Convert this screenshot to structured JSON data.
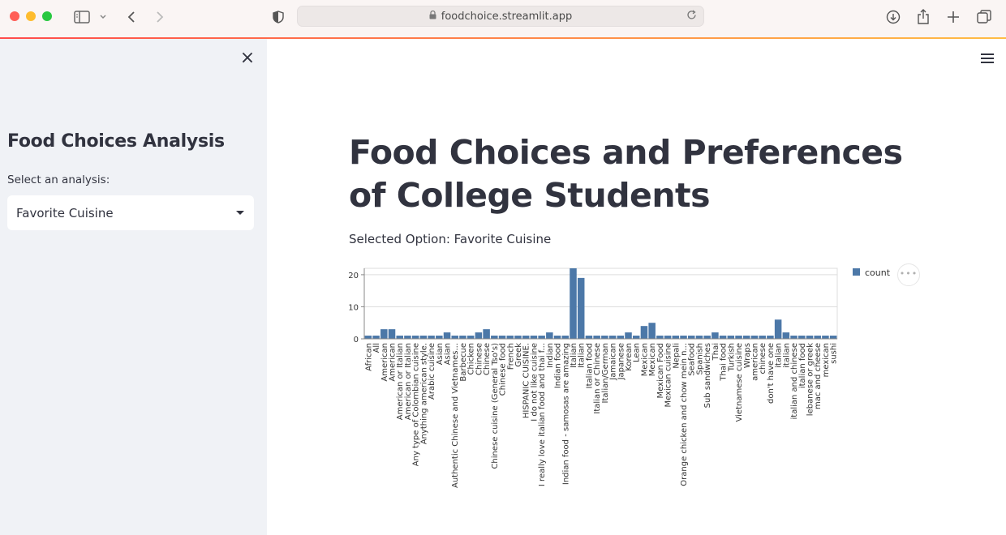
{
  "browser": {
    "url": "foodchoice.streamlit.app",
    "traffic_colors": [
      "#ff5f57",
      "#febc2e",
      "#28c840"
    ]
  },
  "sidebar": {
    "close_icon": "×",
    "title": "Food Choices Analysis",
    "select_label": "Select an analysis:",
    "selected_value": "Favorite Cuisine"
  },
  "main": {
    "title": "Food Choices and Preferences of College Students",
    "selected_text": "Selected Option: Favorite Cuisine"
  },
  "chart_data": {
    "type": "bar",
    "categories": [
      "African",
      "All",
      "American",
      "American",
      "American or Italian",
      "American or Italian",
      "Any type of Colombian cuisine",
      "Anything american style.",
      "Arabic cuisine",
      "Asian",
      "Asian",
      "Authentic Chinese and Vietnames...",
      "Barbecue",
      "Chicken",
      "Chinese",
      "Chinese",
      "Chinese cuisine (General Tso's)",
      "Chinese food",
      "French",
      "Greek",
      "HISPANIC CUISINE.",
      "I do not like cuisine",
      "I really love italian food and thai f...",
      "Indian",
      "Indian food",
      "Indian food - samosas are amazing",
      "Italian",
      "Italian",
      "Italian food",
      "Italian or Chinese",
      "Italian/German",
      "Jamaican",
      "Japanese",
      "Korean",
      "Lean",
      "Mexican",
      "Mexican",
      "Mexican Food",
      "Mexican cuisine",
      "Nepali",
      "Orange chicken and chow mein n...",
      "Seafood",
      "Spanish",
      "Sub sandwiches",
      "Thai",
      "Thai food",
      "Turkish",
      "Vietnamese cuisine",
      "Wraps",
      "american",
      "chinese",
      "don't have one",
      "italian",
      "italian",
      "italian and chinese",
      "italian food",
      "lebanese or greek",
      "mac and cheese",
      "mexican",
      "sushi"
    ],
    "series": [
      {
        "name": "count",
        "values": [
          1,
          1,
          3,
          3,
          1,
          1,
          1,
          1,
          1,
          1,
          2,
          1,
          1,
          1,
          2,
          3,
          1,
          1,
          1,
          1,
          1,
          1,
          1,
          2,
          1,
          1,
          22,
          19,
          1,
          1,
          1,
          1,
          1,
          2,
          1,
          4,
          5,
          1,
          1,
          1,
          1,
          1,
          1,
          1,
          2,
          1,
          1,
          1,
          1,
          1,
          1,
          1,
          6,
          2,
          1,
          1,
          1,
          1,
          1,
          1
        ]
      }
    ],
    "ylim": [
      0,
      22
    ],
    "yticks": [
      0,
      10,
      20
    ],
    "grid": true,
    "legend": "right",
    "color": "#4c78a8"
  }
}
